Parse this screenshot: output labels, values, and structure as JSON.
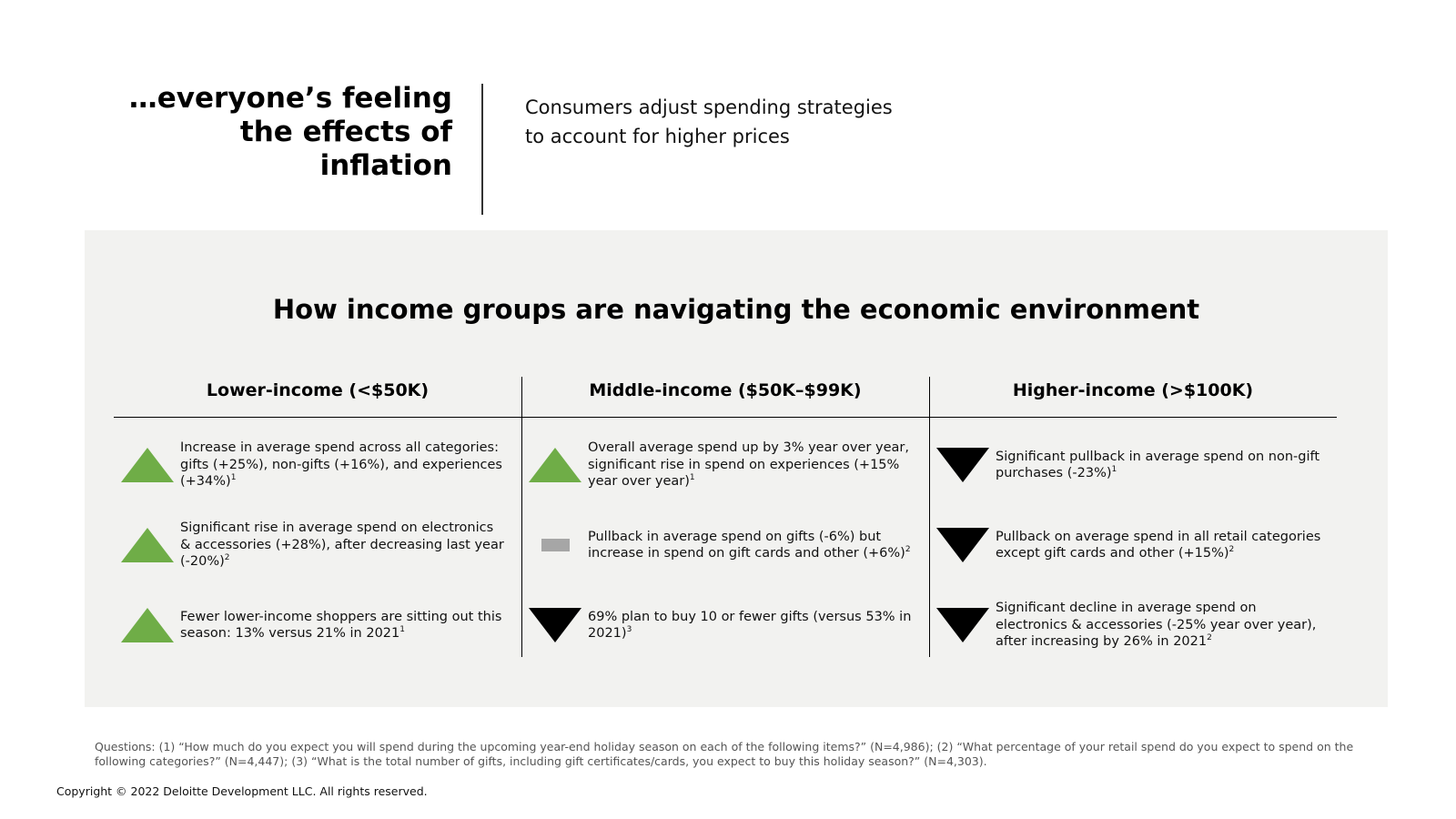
{
  "header": {
    "title": [
      "…everyone’s feeling",
      "the effects of",
      "inflation"
    ],
    "subtitle": [
      "Consumers adjust spending strategies",
      "to account for higher prices"
    ]
  },
  "panel": {
    "title": "How income groups are navigating the economic environment",
    "columns": [
      {
        "heading": "Lower-income (<$50K)",
        "items": [
          {
            "text": "Increase in average spend across all categories: gifts (+25%), non-gifts (+16%), and experiences (+34%)",
            "note": "1"
          },
          {
            "text": "Significant rise in average spend on electronics & accessories (+28%), after decreasing last year (-20%)",
            "note": "2"
          },
          {
            "text": "Fewer lower-income shoppers are sitting out this season: 13% versus 21% in 2021",
            "note": "1"
          }
        ]
      },
      {
        "heading": "Middle-income ($50K–$99K)",
        "items": [
          {
            "text": "Overall average spend up by 3% year over year, significant rise in spend on experiences (+15% year over year)",
            "note": "1"
          },
          {
            "text": "Pullback in average spend on gifts (-6%) but increase in spend on gift cards and other (+6%)",
            "note": "2"
          },
          {
            "text": "69% plan to buy 10 or fewer gifts (versus 53% in 2021)",
            "note": "3"
          }
        ]
      },
      {
        "heading": "Higher-income (>$100K)",
        "items": [
          {
            "text": "Significant pullback in average spend on non-gift purchases (-23%)",
            "note": "1"
          },
          {
            "text": "Pullback on average spend in all retail categories except gift cards and other (+15%)",
            "note": "2"
          },
          {
            "text": "Significant decline in average spend on electronics & accessories (-25% year over year), after increasing by 26% in 2021",
            "note": "2"
          }
        ]
      }
    ]
  },
  "footnote": "Questions: (1) “How much do you expect you will spend during the upcoming year-end holiday season on each of the following items?” (N=4,986); (2) “What percentage of your retail spend do you expect to spend on the following categories?” (N=4,447); (3) “What is the total number of gifts, including gift certificates/cards, you expect to buy this holiday season?” (N=4,303).",
  "copyright": "Copyright © 2022 Deloitte Development LLC. All rights reserved."
}
